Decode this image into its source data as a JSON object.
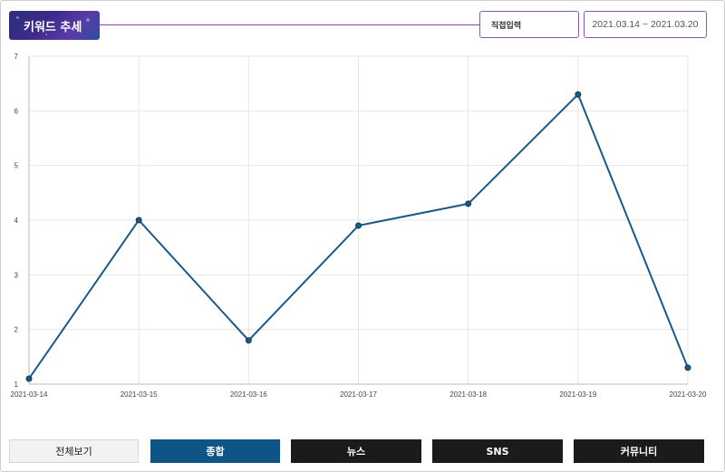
{
  "header": {
    "title": "키워드 추세",
    "direct_input_label": "직접입력",
    "date_range": "2021.03.14 ~ 2021.03.20"
  },
  "tabs": [
    {
      "label": "전체보기",
      "active": false
    },
    {
      "label": "종합",
      "active": true
    },
    {
      "label": "뉴스",
      "active": false
    },
    {
      "label": "SNS",
      "active": false
    },
    {
      "label": "커뮤니티",
      "active": false
    }
  ],
  "colors": {
    "line": "#1a5a86",
    "active_tab": "#0e5486",
    "dark_tab": "#1b1b1b",
    "accent": "#7a4a9c"
  },
  "chart_data": {
    "type": "line",
    "categories": [
      "2021-03-14",
      "2021-03-15",
      "2021-03-16",
      "2021-03-17",
      "2021-03-18",
      "2021-03-19",
      "2021-03-20"
    ],
    "series": [
      {
        "values": [
          1.1,
          4.0,
          1.8,
          3.9,
          4.3,
          6.3,
          1.3
        ]
      }
    ],
    "ylim": [
      1,
      7
    ],
    "yticks": [
      "1",
      "2",
      "3",
      "4",
      "5",
      "6",
      "7"
    ],
    "grid": true,
    "title": "",
    "xlabel": "",
    "ylabel": ""
  }
}
